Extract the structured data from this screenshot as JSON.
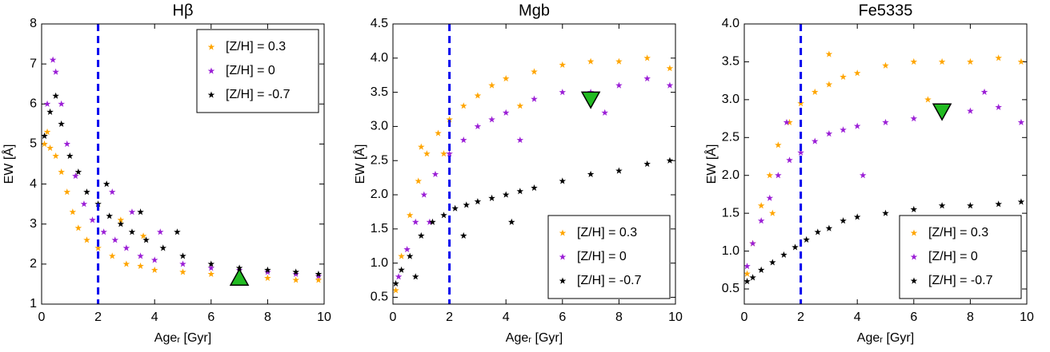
{
  "chart_data": [
    {
      "type": "scatter",
      "title": "Hβ",
      "xlabel": "Ageᵣ [Gyr]",
      "ylabel": "EW [Å]",
      "xlim": [
        0,
        10
      ],
      "xticks": [
        0,
        2,
        4,
        6,
        8,
        10
      ],
      "ylim": [
        1,
        8
      ],
      "yticks": [
        1,
        2,
        3,
        4,
        5,
        6,
        7,
        8
      ],
      "legend": "upper right",
      "vline": 2,
      "vline_color": "#0000ee",
      "reference_point": {
        "x": 7,
        "y": 1.65,
        "shape": "triangle-up",
        "color": "#22bb22"
      },
      "series": [
        {
          "name": "[Z/H] = 0.3",
          "color": "#ffa500",
          "x": [
            0.1,
            0.3,
            0.5,
            0.7,
            0.9,
            1.1,
            1.3,
            1.6,
            2,
            2.5,
            3,
            3.5,
            4,
            5,
            6,
            7,
            8,
            9,
            9.8,
            0.2,
            2.8,
            3.6
          ],
          "y": [
            5.0,
            4.9,
            4.7,
            4.3,
            3.8,
            3.3,
            2.9,
            2.6,
            2.4,
            2.2,
            2.0,
            1.95,
            1.85,
            1.8,
            1.75,
            1.7,
            1.65,
            1.6,
            1.6,
            5.3,
            3.1,
            2.7
          ]
        },
        {
          "name": "[Z/H] = 0",
          "color": "#9b1fd6",
          "x": [
            0.2,
            0.4,
            0.5,
            0.7,
            0.9,
            1.2,
            1.5,
            1.8,
            2.2,
            2.6,
            3,
            3.5,
            4,
            5,
            6,
            7,
            8,
            9,
            9.8,
            2.5,
            3.2,
            4.2
          ],
          "y": [
            6.0,
            7.1,
            6.8,
            6.0,
            5.0,
            4.2,
            3.5,
            3.1,
            2.8,
            2.6,
            2.4,
            2.2,
            2.1,
            2.0,
            1.9,
            1.85,
            1.8,
            1.75,
            1.7,
            3.8,
            3.3,
            2.8
          ]
        },
        {
          "name": "[Z/H] = -0.7",
          "color": "#000000",
          "x": [
            0.1,
            0.3,
            0.5,
            0.7,
            1,
            1.3,
            1.6,
            2,
            2.4,
            2.8,
            3.2,
            3.7,
            4.3,
            5,
            6,
            7,
            8,
            9,
            9.8,
            2.3,
            3.5,
            4.8
          ],
          "y": [
            5.2,
            5.8,
            6.2,
            5.5,
            4.7,
            4.3,
            3.8,
            3.5,
            3.2,
            3.0,
            2.8,
            2.6,
            2.4,
            2.2,
            2.0,
            1.9,
            1.85,
            1.8,
            1.75,
            4.0,
            3.3,
            2.8
          ]
        }
      ]
    },
    {
      "type": "scatter",
      "title": "Mgb",
      "xlabel": "Ageᵣ [Gyr]",
      "ylabel": "EW [Å]",
      "xlim": [
        0,
        10
      ],
      "xticks": [
        0,
        2,
        4,
        6,
        8,
        10
      ],
      "ylim": [
        0.4,
        4.5
      ],
      "yticks": [
        0.5,
        {
          "value": 1,
          "label": "1.0"
        },
        1.5,
        {
          "value": 2,
          "label": "2.0"
        },
        2.5,
        {
          "value": 3,
          "label": "3.0"
        },
        3.5,
        {
          "value": 4,
          "label": "4.0"
        },
        4.5
      ],
      "legend": "lower right",
      "vline": 2,
      "vline_color": "#0000ee",
      "reference_point": {
        "x": 7,
        "y": 3.4,
        "shape": "triangle-down",
        "color": "#22bb22"
      },
      "series": [
        {
          "name": "[Z/H] = 0.3",
          "color": "#ffa500",
          "x": [
            0.1,
            0.3,
            0.6,
            0.9,
            1.2,
            1.6,
            2,
            2.5,
            3,
            3.5,
            4,
            5,
            6,
            7,
            8,
            9,
            9.8,
            1,
            1.8,
            4.5
          ],
          "y": [
            0.6,
            1.1,
            1.7,
            2.2,
            2.6,
            2.9,
            3.1,
            3.3,
            3.45,
            3.6,
            3.7,
            3.8,
            3.9,
            3.95,
            3.95,
            4.0,
            3.85,
            2.7,
            2.6,
            3.3
          ]
        },
        {
          "name": "[Z/H] = 0",
          "color": "#9b1fd6",
          "x": [
            0.2,
            0.5,
            0.8,
            1.1,
            1.5,
            2,
            2.5,
            3,
            3.5,
            4,
            5,
            6,
            7,
            8,
            9,
            9.8,
            1.3,
            4.5,
            7.5
          ],
          "y": [
            0.8,
            1.2,
            1.6,
            2.0,
            2.3,
            2.6,
            2.8,
            3.0,
            3.1,
            3.2,
            3.4,
            3.5,
            3.5,
            3.6,
            3.7,
            3.6,
            1.6,
            2.8,
            3.2
          ]
        },
        {
          "name": "[Z/H] = -0.7",
          "color": "#000000",
          "x": [
            0.1,
            0.3,
            0.6,
            1,
            1.4,
            1.8,
            2.2,
            2.6,
            3,
            3.5,
            4,
            4.5,
            5,
            6,
            7,
            8,
            9,
            9.8,
            0.8,
            2.5,
            4.2
          ],
          "y": [
            0.7,
            0.9,
            1.1,
            1.4,
            1.6,
            1.7,
            1.8,
            1.85,
            1.9,
            1.95,
            2.0,
            2.05,
            2.1,
            2.2,
            2.3,
            2.35,
            2.45,
            2.5,
            0.8,
            1.4,
            1.6
          ]
        }
      ]
    },
    {
      "type": "scatter",
      "title": "Fe5335",
      "xlabel": "Ageᵣ [Gyr]",
      "ylabel": "EW [Å]",
      "xlim": [
        0,
        10
      ],
      "xticks": [
        0,
        2,
        4,
        6,
        8,
        10
      ],
      "ylim": [
        0.3,
        4.0
      ],
      "yticks": [
        0.5,
        {
          "value": 1,
          "label": "1.0"
        },
        1.5,
        {
          "value": 2,
          "label": "2.0"
        },
        2.5,
        {
          "value": 3,
          "label": "3.0"
        },
        3.5,
        {
          "value": 4,
          "label": "4.0"
        }
      ],
      "legend": "lower right",
      "vline": 2,
      "vline_color": "#0000ee",
      "reference_point": {
        "x": 7,
        "y": 2.85,
        "shape": "triangle-down",
        "color": "#22bb22"
      },
      "series": [
        {
          "name": "[Z/H] = 0.3",
          "color": "#ffa500",
          "x": [
            0.1,
            0.3,
            0.6,
            0.9,
            1.2,
            1.6,
            2,
            2.5,
            3,
            3.5,
            4,
            5,
            6,
            7,
            8,
            9,
            9.8,
            1,
            3,
            6.5
          ],
          "y": [
            0.7,
            1.1,
            1.6,
            2.0,
            2.4,
            2.7,
            2.95,
            3.1,
            3.2,
            3.3,
            3.35,
            3.45,
            3.5,
            3.5,
            3.5,
            3.55,
            3.5,
            1.5,
            3.6,
            3.0
          ]
        },
        {
          "name": "[Z/H] = 0",
          "color": "#9b1fd6",
          "x": [
            0.1,
            0.3,
            0.6,
            0.9,
            1.2,
            1.6,
            2,
            2.5,
            3,
            3.5,
            4,
            5,
            6,
            7,
            8,
            9,
            9.8,
            1.5,
            4.2,
            8.5
          ],
          "y": [
            0.8,
            1.1,
            1.4,
            1.7,
            2.0,
            2.2,
            2.3,
            2.45,
            2.55,
            2.6,
            2.65,
            2.7,
            2.75,
            2.8,
            2.85,
            2.9,
            2.7,
            2.7,
            2.0,
            3.1
          ]
        },
        {
          "name": "[Z/H] = -0.7",
          "color": "#000000",
          "x": [
            0.1,
            0.3,
            0.6,
            1,
            1.4,
            1.8,
            2.2,
            2.6,
            3,
            3.5,
            4,
            5,
            6,
            7,
            8,
            9,
            9.8
          ],
          "y": [
            0.6,
            0.65,
            0.75,
            0.85,
            0.95,
            1.05,
            1.15,
            1.25,
            1.3,
            1.4,
            1.45,
            1.5,
            1.55,
            1.6,
            1.6,
            1.62,
            1.65
          ]
        }
      ]
    }
  ]
}
